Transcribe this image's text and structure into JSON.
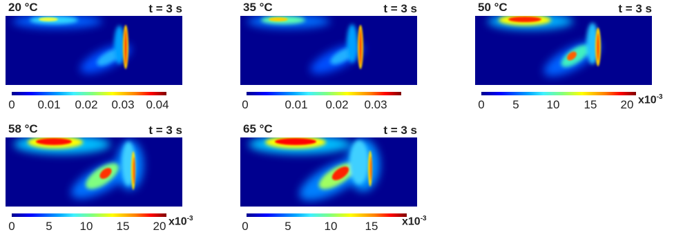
{
  "panels": [
    {
      "temperature": "20 °C",
      "time": "t = 3 s",
      "colorbar": {
        "ticks": [
          "0",
          "0.01",
          "0.02",
          "0.03",
          "0.04"
        ],
        "exponent": ""
      }
    },
    {
      "temperature": "35 °C",
      "time": "t = 3 s",
      "colorbar": {
        "ticks": [
          "0",
          "0.01",
          "0.02",
          "0.03"
        ],
        "exponent": ""
      }
    },
    {
      "temperature": "50 °C",
      "time": "t = 3 s",
      "colorbar": {
        "ticks": [
          "0",
          "5",
          "10",
          "15",
          "20"
        ],
        "exponent": "x10",
        "exponent_power": "-3"
      }
    },
    {
      "temperature": "58 °C",
      "time": "t = 3 s",
      "colorbar": {
        "ticks": [
          "0",
          "5",
          "10",
          "15",
          "20"
        ],
        "exponent": "x10",
        "exponent_power": "-3"
      }
    },
    {
      "temperature": "65 °C",
      "time": "t = 3 s",
      "colorbar": {
        "ticks": [
          "0",
          "5",
          "10",
          "15"
        ],
        "exponent": "x10",
        "exponent_power": "-3"
      }
    }
  ],
  "colormap": "jet",
  "colors": {
    "background": "#00008f",
    "high": "#ff0000",
    "peak": "#800000"
  }
}
